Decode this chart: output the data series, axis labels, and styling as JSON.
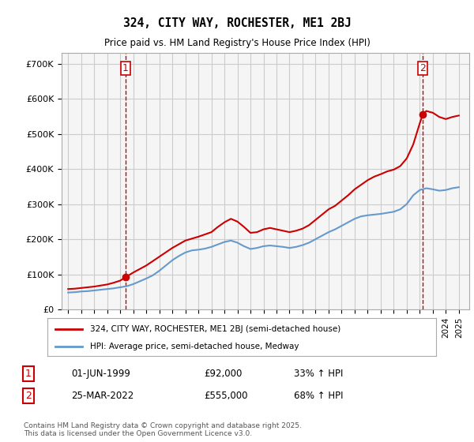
{
  "title": "324, CITY WAY, ROCHESTER, ME1 2BJ",
  "subtitle": "Price paid vs. HM Land Registry's House Price Index (HPI)",
  "legend_label_red": "324, CITY WAY, ROCHESTER, ME1 2BJ (semi-detached house)",
  "legend_label_blue": "HPI: Average price, semi-detached house, Medway",
  "footnote": "Contains HM Land Registry data © Crown copyright and database right 2025.\nThis data is licensed under the Open Government Licence v3.0.",
  "sale1_label": "1",
  "sale1_date": "01-JUN-1999",
  "sale1_price": "£92,000",
  "sale1_hpi": "33% ↑ HPI",
  "sale2_label": "2",
  "sale2_date": "25-MAR-2022",
  "sale2_price": "£555,000",
  "sale2_hpi": "68% ↑ HPI",
  "red_color": "#cc0000",
  "blue_color": "#6699cc",
  "grid_color": "#cccccc",
  "bg_color": "#ffffff",
  "plot_bg_color": "#f5f5f5",
  "marker1_x_year": 1999.42,
  "marker1_y": 92000,
  "marker2_x_year": 2022.23,
  "marker2_y": 555000,
  "vline1_x": 1999.42,
  "vline2_x": 2022.23,
  "ylim": [
    0,
    730000
  ],
  "xlim_start": 1994.5,
  "xlim_end": 2025.8,
  "hpi_years": [
    1995,
    1995.5,
    1996,
    1996.5,
    1997,
    1997.5,
    1998,
    1998.5,
    1999,
    1999.5,
    2000,
    2000.5,
    2001,
    2001.5,
    2002,
    2002.5,
    2003,
    2003.5,
    2004,
    2004.5,
    2005,
    2005.5,
    2006,
    2006.5,
    2007,
    2007.5,
    2008,
    2008.5,
    2009,
    2009.5,
    2010,
    2010.5,
    2011,
    2011.5,
    2012,
    2012.5,
    2013,
    2013.5,
    2014,
    2014.5,
    2015,
    2015.5,
    2016,
    2016.5,
    2017,
    2017.5,
    2018,
    2018.5,
    2019,
    2019.5,
    2020,
    2020.5,
    2021,
    2021.5,
    2022,
    2022.5,
    2023,
    2023.5,
    2024,
    2024.5,
    2025
  ],
  "hpi_values": [
    48000,
    49000,
    51000,
    52000,
    54000,
    56000,
    58000,
    60000,
    63000,
    66000,
    72000,
    80000,
    88000,
    97000,
    110000,
    125000,
    140000,
    152000,
    162000,
    168000,
    170000,
    173000,
    178000,
    185000,
    192000,
    196000,
    190000,
    180000,
    172000,
    175000,
    180000,
    182000,
    180000,
    178000,
    175000,
    178000,
    183000,
    190000,
    200000,
    210000,
    220000,
    228000,
    238000,
    248000,
    258000,
    265000,
    268000,
    270000,
    272000,
    275000,
    278000,
    285000,
    300000,
    325000,
    340000,
    345000,
    342000,
    338000,
    340000,
    345000,
    348000
  ],
  "red_years": [
    1995,
    1995.5,
    1996,
    1996.5,
    1997,
    1997.5,
    1998,
    1998.5,
    1999,
    1999.42,
    2000,
    2001,
    2002,
    2003,
    2004,
    2005,
    2006,
    2006.5,
    2007,
    2007.5,
    2008,
    2008.5,
    2009,
    2009.5,
    2010,
    2010.5,
    2011,
    2011.5,
    2012,
    2012.5,
    2013,
    2013.5,
    2014,
    2014.5,
    2015,
    2015.5,
    2016,
    2016.5,
    2017,
    2017.5,
    2018,
    2018.5,
    2019,
    2019.5,
    2020,
    2020.5,
    2021,
    2021.5,
    2022,
    2022.23,
    2022.5,
    2023,
    2023.5,
    2024,
    2024.5,
    2025
  ],
  "red_values": [
    58000,
    59000,
    61000,
    63000,
    65000,
    68000,
    71000,
    76000,
    82000,
    92000,
    105000,
    125000,
    150000,
    175000,
    196000,
    207000,
    220000,
    235000,
    248000,
    258000,
    250000,
    235000,
    218000,
    220000,
    228000,
    232000,
    228000,
    224000,
    220000,
    224000,
    230000,
    240000,
    255000,
    270000,
    285000,
    295000,
    310000,
    325000,
    342000,
    355000,
    368000,
    378000,
    385000,
    393000,
    398000,
    408000,
    430000,
    470000,
    530000,
    555000,
    565000,
    560000,
    548000,
    542000,
    548000,
    552000
  ]
}
